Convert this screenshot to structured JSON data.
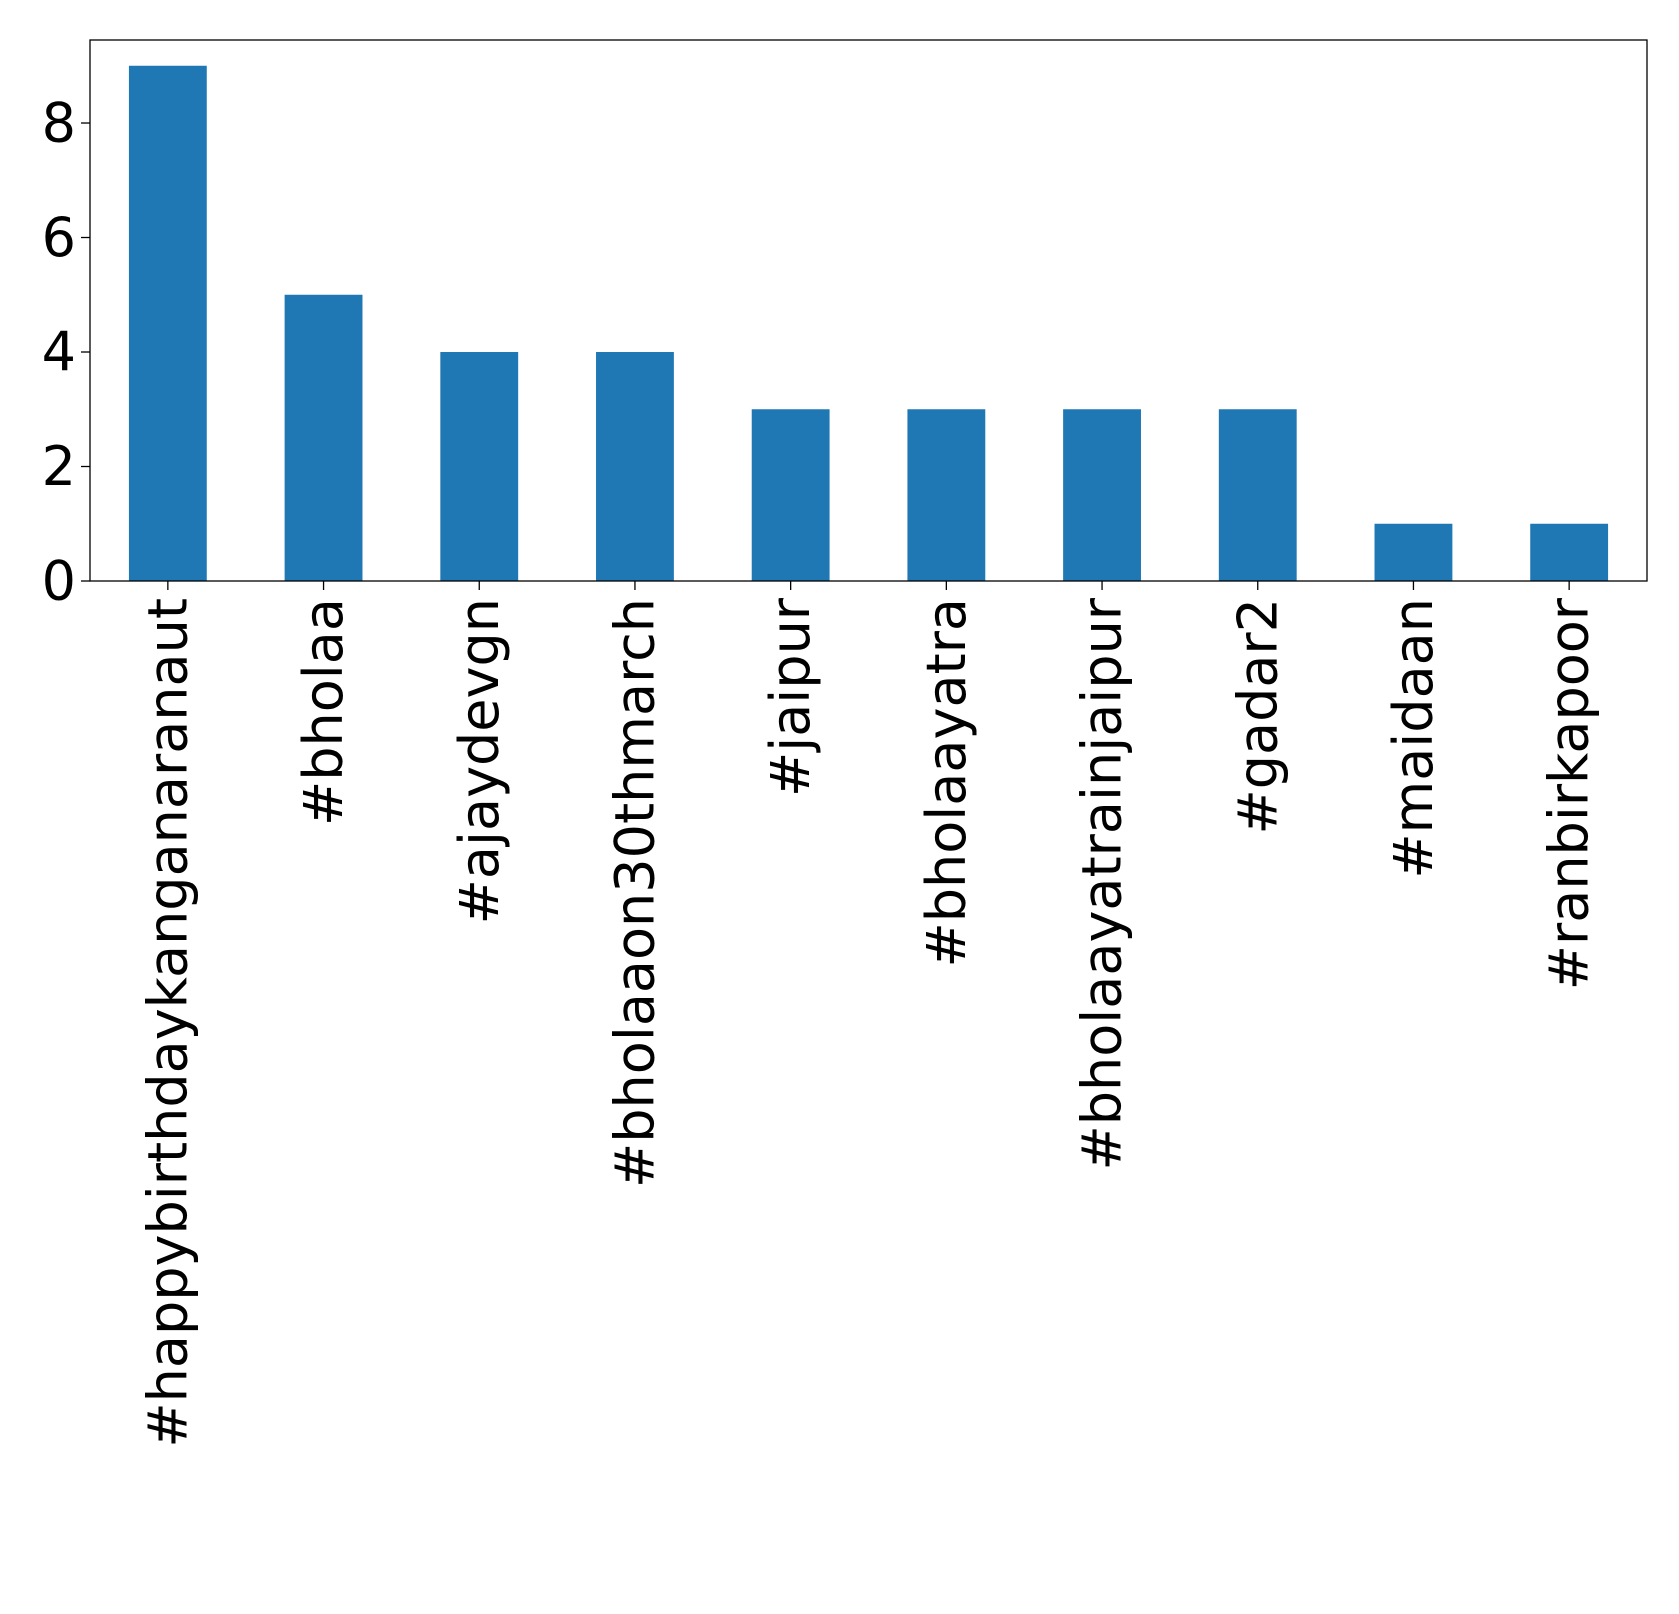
{
  "chart_data": {
    "type": "bar",
    "title": "",
    "xlabel": "",
    "ylabel": "",
    "categories": [
      "#happybirthdaykanganaranaut",
      "#bholaa",
      "#ajaydevgn",
      "#bholaaon30thmarch",
      "#jaipur",
      "#bholaayatra",
      "#bholaayatrainjaipur",
      "#gadar2",
      "#maidaan",
      "#ranbirkapoor"
    ],
    "values": [
      9,
      5,
      4,
      4,
      3,
      3,
      3,
      3,
      1,
      1
    ],
    "ylim": [
      0,
      9.45
    ],
    "yticks": [
      0,
      2,
      4,
      6,
      8
    ],
    "grid": false,
    "legend": "none",
    "bar_color": "#1f77b4"
  }
}
